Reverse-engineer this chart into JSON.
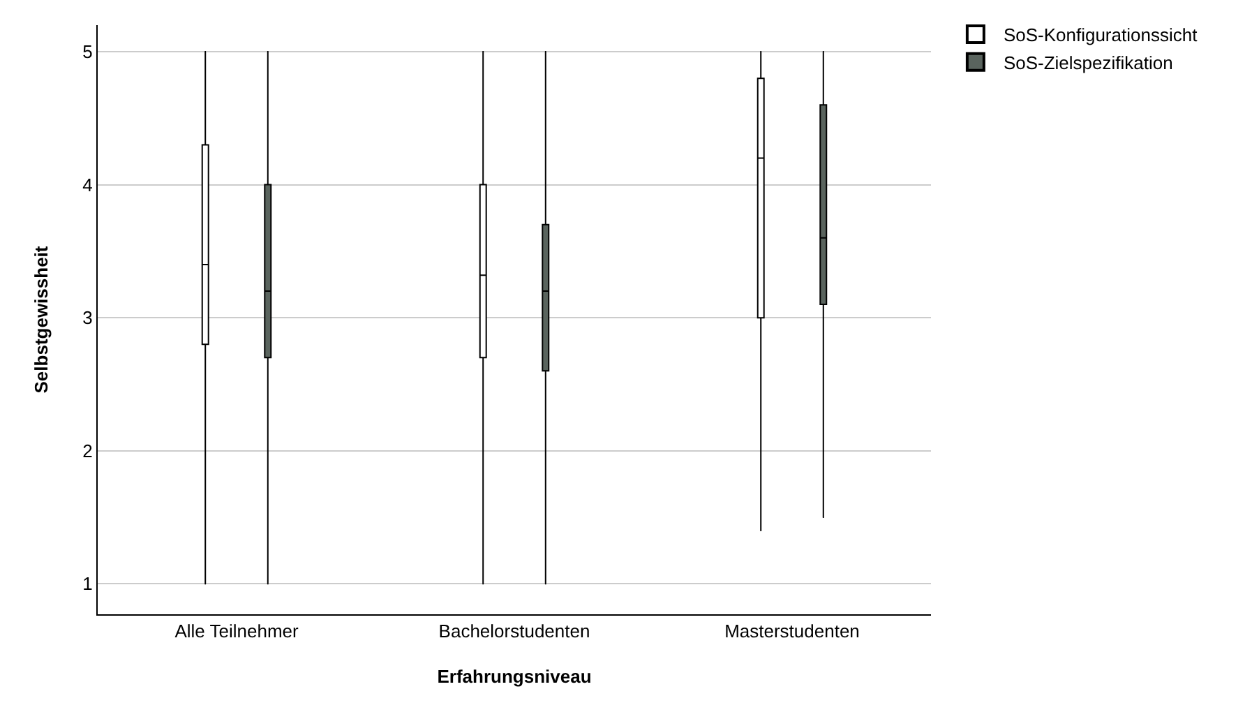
{
  "chart_data": {
    "type": "box",
    "xlabel": "Erfahrungsniveau",
    "ylabel": "Selbstgewissheit",
    "categories": [
      "Alle Teilnehmer",
      "Bachelorstudenten",
      "Masterstudenten"
    ],
    "series": [
      {
        "name": "SoS-Konfigurationssicht",
        "color": "#ffffff",
        "boxes": [
          {
            "low": 1,
            "q1": 2.8,
            "median": 3.4,
            "q3": 4.3,
            "high": 5
          },
          {
            "low": 1,
            "q1": 2.7,
            "median": 3.32,
            "q3": 4.0,
            "high": 5
          },
          {
            "low": 1.4,
            "q1": 3.0,
            "median": 4.2,
            "q3": 4.8,
            "high": 5
          }
        ]
      },
      {
        "name": "SoS-Zielspezifikation",
        "color": "#5a645e",
        "boxes": [
          {
            "low": 1,
            "q1": 2.7,
            "median": 3.2,
            "q3": 4.0,
            "high": 5
          },
          {
            "low": 1,
            "q1": 2.6,
            "median": 3.2,
            "q3": 3.7,
            "high": 5
          },
          {
            "low": 1.5,
            "q1": 3.1,
            "median": 3.6,
            "q3": 4.6,
            "high": 5
          }
        ]
      }
    ],
    "ylim": [
      0.77,
      5.2
    ],
    "yticks": [
      1,
      2,
      3,
      4,
      5
    ],
    "grid": "y",
    "legend": "top right"
  }
}
